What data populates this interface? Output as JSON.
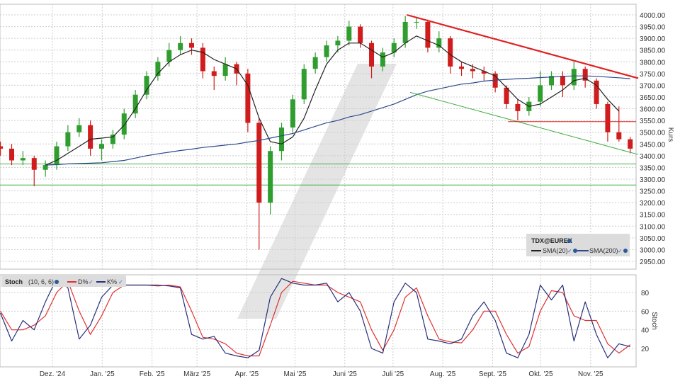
{
  "chart_data": [
    {
      "type": "candlestick",
      "instrument_label": "TDX@EUREX",
      "ylabel": "Kurs",
      "ylim": [
        2900,
        4030
      ],
      "yticks": [
        2950,
        3000,
        3050,
        3100,
        3150,
        3200,
        3250,
        3300,
        3350,
        3400,
        3450,
        3500,
        3550,
        3600,
        3650,
        3700,
        3750,
        3800,
        3850,
        3900,
        3950,
        4000
      ],
      "grid": true,
      "colors": {
        "up": "#2f9e2f",
        "down": "#d01c1c",
        "sma20": "#222222",
        "sma200": "#2b4a8a",
        "trend_red": "#e02020",
        "trend_green": "#3fae3f",
        "support": "#3fae3f"
      },
      "dates": [
        "2024-10-27",
        "2024-11-03",
        "2024-11-10",
        "2024-11-17",
        "2024-11-24",
        "2024-12-01",
        "2024-12-08",
        "2024-12-15",
        "2024-12-22",
        "2024-12-29",
        "2025-01-05",
        "2025-01-12",
        "2025-01-19",
        "2025-01-26",
        "2025-02-02",
        "2025-02-09",
        "2025-02-16",
        "2025-02-23",
        "2025-03-02",
        "2025-03-09",
        "2025-03-16",
        "2025-03-23",
        "2025-03-30",
        "2025-04-06",
        "2025-04-13",
        "2025-04-20",
        "2025-04-27",
        "2025-05-04",
        "2025-05-11",
        "2025-05-18",
        "2025-05-25",
        "2025-06-01",
        "2025-06-08",
        "2025-06-15",
        "2025-06-22",
        "2025-06-29",
        "2025-07-06",
        "2025-07-13",
        "2025-07-20",
        "2025-07-27",
        "2025-08-03",
        "2025-08-10",
        "2025-08-17",
        "2025-08-24",
        "2025-08-31",
        "2025-09-07",
        "2025-09-14",
        "2025-09-21",
        "2025-09-28",
        "2025-10-05",
        "2025-10-12",
        "2025-10-19",
        "2025-10-26",
        "2025-11-02",
        "2025-11-09",
        "2025-11-16",
        "2025-11-23"
      ],
      "ohlc": [
        [
          3440,
          3460,
          3400,
          3430
        ],
        [
          3430,
          3450,
          3360,
          3380
        ],
        [
          3380,
          3420,
          3360,
          3390
        ],
        [
          3390,
          3400,
          3270,
          3340
        ],
        [
          3340,
          3380,
          3310,
          3360
        ],
        [
          3360,
          3460,
          3340,
          3440
        ],
        [
          3440,
          3530,
          3420,
          3500
        ],
        [
          3500,
          3560,
          3480,
          3530
        ],
        [
          3530,
          3550,
          3400,
          3430
        ],
        [
          3430,
          3470,
          3380,
          3450
        ],
        [
          3450,
          3510,
          3430,
          3490
        ],
        [
          3490,
          3600,
          3470,
          3580
        ],
        [
          3580,
          3680,
          3560,
          3660
        ],
        [
          3660,
          3760,
          3640,
          3740
        ],
        [
          3740,
          3820,
          3720,
          3800
        ],
        [
          3800,
          3880,
          3780,
          3850
        ],
        [
          3850,
          3910,
          3830,
          3880
        ],
        [
          3880,
          3900,
          3830,
          3860
        ],
        [
          3860,
          3880,
          3730,
          3760
        ],
        [
          3760,
          3780,
          3680,
          3740
        ],
        [
          3740,
          3820,
          3720,
          3790
        ],
        [
          3790,
          3800,
          3700,
          3750
        ],
        [
          3750,
          3770,
          3500,
          3540
        ],
        [
          3540,
          3560,
          3000,
          3200
        ],
        [
          3200,
          3440,
          3150,
          3420
        ],
        [
          3420,
          3540,
          3380,
          3520
        ],
        [
          3520,
          3660,
          3500,
          3640
        ],
        [
          3640,
          3790,
          3620,
          3770
        ],
        [
          3770,
          3840,
          3750,
          3820
        ],
        [
          3820,
          3890,
          3800,
          3870
        ],
        [
          3870,
          3910,
          3840,
          3890
        ],
        [
          3890,
          3975,
          3870,
          3950
        ],
        [
          3950,
          3960,
          3860,
          3880
        ],
        [
          3880,
          3890,
          3730,
          3780
        ],
        [
          3780,
          3860,
          3760,
          3840
        ],
        [
          3840,
          3900,
          3820,
          3880
        ],
        [
          3880,
          3995,
          3860,
          3970
        ],
        [
          3970,
          3990,
          3940,
          3970
        ],
        [
          3970,
          3980,
          3840,
          3860
        ],
        [
          3860,
          3930,
          3840,
          3900
        ],
        [
          3900,
          3910,
          3750,
          3780
        ],
        [
          3780,
          3800,
          3740,
          3770
        ],
        [
          3770,
          3790,
          3730,
          3760
        ],
        [
          3760,
          3780,
          3720,
          3750
        ],
        [
          3750,
          3760,
          3670,
          3690
        ],
        [
          3690,
          3700,
          3600,
          3620
        ],
        [
          3620,
          3640,
          3550,
          3590
        ],
        [
          3590,
          3650,
          3570,
          3630
        ],
        [
          3630,
          3760,
          3610,
          3700
        ],
        [
          3700,
          3760,
          3680,
          3740
        ],
        [
          3740,
          3760,
          3650,
          3700
        ],
        [
          3700,
          3800,
          3680,
          3770
        ],
        [
          3770,
          3780,
          3690,
          3720
        ],
        [
          3720,
          3730,
          3600,
          3620
        ],
        [
          3620,
          3630,
          3460,
          3500
        ],
        [
          3500,
          3610,
          3460,
          3470
        ],
        [
          3470,
          3480,
          3410,
          3430
        ]
      ],
      "series": [
        {
          "name": "SMA(20)",
          "values": [
            null,
            null,
            null,
            null,
            3360,
            3380,
            3410,
            3440,
            3470,
            3475,
            3480,
            3530,
            3600,
            3680,
            3750,
            3800,
            3830,
            3850,
            3840,
            3810,
            3790,
            3770,
            3700,
            3560,
            3460,
            3450,
            3480,
            3560,
            3680,
            3790,
            3850,
            3880,
            3880,
            3850,
            3820,
            3840,
            3880,
            3910,
            3890,
            3870,
            3830,
            3800,
            3780,
            3760,
            3740,
            3690,
            3640,
            3610,
            3620,
            3650,
            3680,
            3720,
            3730,
            3700,
            3640,
            3590,
            null
          ]
        },
        {
          "name": "SMA(200)",
          "values": [
            null,
            null,
            null,
            null,
            3360,
            3362,
            3365,
            3367,
            3368,
            3370,
            3375,
            3380,
            3390,
            3400,
            3408,
            3415,
            3422,
            3428,
            3435,
            3440,
            3445,
            3450,
            3458,
            3465,
            3475,
            3485,
            3495,
            3510,
            3525,
            3540,
            3550,
            3565,
            3575,
            3590,
            3605,
            3620,
            3640,
            3660,
            3675,
            3685,
            3695,
            3705,
            3710,
            3718,
            3722,
            3725,
            3728,
            3730,
            3733,
            3735,
            3738,
            3740,
            3740,
            3738,
            3735,
            3732,
            3728
          ]
        }
      ],
      "trendlines": [
        {
          "kind": "resistance",
          "from": [
            "2025-07-07",
            4000
          ],
          "to": [
            "2025-11-28",
            3730
          ],
          "color": "trend_red"
        },
        {
          "kind": "channel",
          "from": [
            "2025-07-09",
            3670
          ],
          "to": [
            "2025-11-28",
            3405
          ],
          "color": "trend_green"
        },
        {
          "kind": "horizontal",
          "value": 3545,
          "from": "2025-09-08",
          "color": "trend_red"
        },
        {
          "kind": "horizontal",
          "value": 3365,
          "color": "support"
        },
        {
          "kind": "horizontal",
          "value": 3275,
          "color": "support"
        }
      ]
    },
    {
      "type": "line",
      "title": "Stoch",
      "params": "(10, 6, 6)",
      "ylabel": "Stoch",
      "ylim": [
        0,
        100
      ],
      "yticks": [
        20,
        40,
        60,
        80
      ],
      "series": [
        {
          "name": "D%",
          "color": "#e03030",
          "values": [
            60,
            40,
            40,
            45,
            55,
            80,
            92,
            60,
            35,
            55,
            80,
            88,
            88,
            88,
            87,
            88,
            86,
            60,
            32,
            30,
            25,
            15,
            12,
            12,
            45,
            80,
            92,
            90,
            88,
            88,
            80,
            75,
            70,
            40,
            18,
            40,
            75,
            85,
            55,
            30,
            27,
            26,
            40,
            60,
            60,
            35,
            15,
            22,
            60,
            82,
            80,
            55,
            50,
            50,
            25,
            15,
            24
          ]
        },
        {
          "name": "K%",
          "color": "#26307a",
          "values": [
            58,
            28,
            50,
            40,
            70,
            95,
            85,
            30,
            45,
            75,
            88,
            88,
            88,
            88,
            88,
            87,
            85,
            35,
            30,
            33,
            15,
            12,
            10,
            18,
            75,
            95,
            90,
            88,
            88,
            90,
            70,
            80,
            60,
            20,
            15,
            70,
            90,
            80,
            30,
            28,
            25,
            30,
            55,
            70,
            50,
            15,
            10,
            35,
            88,
            72,
            88,
            28,
            70,
            35,
            10,
            25,
            22
          ]
        }
      ]
    }
  ],
  "xaxis": {
    "ticks": [
      {
        "label": "Dez. '24",
        "date": "2024-12-01"
      },
      {
        "label": "Jan. '25",
        "date": "2025-01-01"
      },
      {
        "label": "Feb. '25",
        "date": "2025-02-01"
      },
      {
        "label": "März '25",
        "date": "2025-03-01"
      },
      {
        "label": "Apr. '25",
        "date": "2025-04-01"
      },
      {
        "label": "Mai '25",
        "date": "2025-05-01"
      },
      {
        "label": "Juni '25",
        "date": "2025-06-01"
      },
      {
        "label": "Juli '25",
        "date": "2025-07-01"
      },
      {
        "label": "Aug. '25",
        "date": "2025-08-01"
      },
      {
        "label": "Sept. '25",
        "date": "2025-09-01"
      },
      {
        "label": "Okt. '25",
        "date": "2025-10-01"
      },
      {
        "label": "Nov. '25",
        "date": "2025-11-01"
      }
    ]
  },
  "legend": {
    "title": "TDX@EUREX",
    "sma20": "SMA(20)",
    "sma200": "SMA(200)",
    "check": "✓"
  },
  "stoch_legend": {
    "title": "Stoch",
    "params": "(10, 6, 6)",
    "d": "D%",
    "k": "K%",
    "check": "✓"
  }
}
